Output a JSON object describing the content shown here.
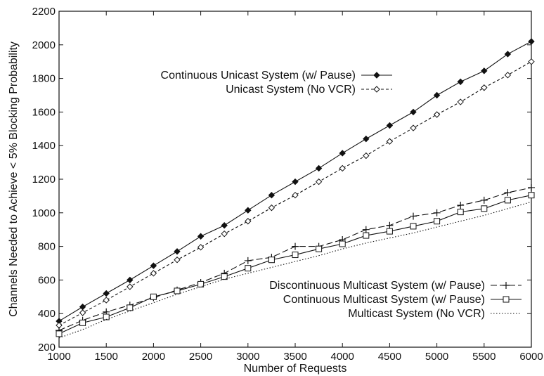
{
  "chart_data": {
    "type": "line",
    "title": "",
    "xlabel": "Number of Requests",
    "ylabel": "Channels Needed to Achieve < 5% Blocking Probability",
    "xlim": [
      1000,
      6000
    ],
    "ylim": [
      200,
      2200
    ],
    "xticks": [
      1000,
      1500,
      2000,
      2500,
      3000,
      3500,
      4000,
      4500,
      5000,
      5500,
      6000
    ],
    "yticks": [
      200,
      400,
      600,
      800,
      1000,
      1200,
      1400,
      1600,
      1800,
      2000,
      2200
    ],
    "grid": false,
    "legend_placement": "split: upper-center and lower-right",
    "x": [
      1000,
      1250,
      1500,
      1750,
      2000,
      2250,
      2500,
      2750,
      3000,
      3250,
      3500,
      3750,
      4000,
      4250,
      4500,
      4750,
      5000,
      5250,
      5500,
      5750,
      6000
    ],
    "series": [
      {
        "name": "Continuous Unicast System (w/ Pause)",
        "marker": "diamond-filled",
        "dash": "solid",
        "values": [
          355,
          440,
          520,
          600,
          685,
          770,
          860,
          925,
          1015,
          1105,
          1185,
          1265,
          1355,
          1440,
          1520,
          1600,
          1700,
          1780,
          1845,
          1945,
          2020
        ]
      },
      {
        "name": "Unicast System (No VCR)",
        "marker": "diamond-open",
        "dash": "dashed",
        "values": [
          330,
          405,
          480,
          560,
          640,
          720,
          795,
          875,
          950,
          1030,
          1105,
          1185,
          1265,
          1340,
          1425,
          1505,
          1585,
          1660,
          1745,
          1820,
          1900
        ]
      },
      {
        "name": "Discontinuous Multicast System (w/ Pause)",
        "marker": "plus",
        "dash": "long-dash",
        "values": [
          300,
          360,
          410,
          450,
          495,
          540,
          585,
          640,
          715,
          735,
          800,
          800,
          840,
          900,
          925,
          980,
          1000,
          1045,
          1075,
          1120,
          1150
        ]
      },
      {
        "name": "Continuous Multicast System (w/ Pause)",
        "marker": "square-open",
        "dash": "solid",
        "values": [
          280,
          345,
          380,
          435,
          500,
          535,
          575,
          620,
          670,
          720,
          750,
          785,
          815,
          865,
          890,
          920,
          950,
          1005,
          1025,
          1075,
          1105
        ]
      },
      {
        "name": "Multicast System (No VCR)",
        "marker": "none",
        "dash": "dotted",
        "values": [
          255,
          305,
          365,
          415,
          465,
          515,
          560,
          605,
          640,
          675,
          710,
          745,
          785,
          820,
          850,
          880,
          915,
          950,
          985,
          1025,
          1065
        ]
      }
    ],
    "legend_groups": [
      [
        0,
        1
      ],
      [
        2,
        3,
        4
      ]
    ]
  }
}
